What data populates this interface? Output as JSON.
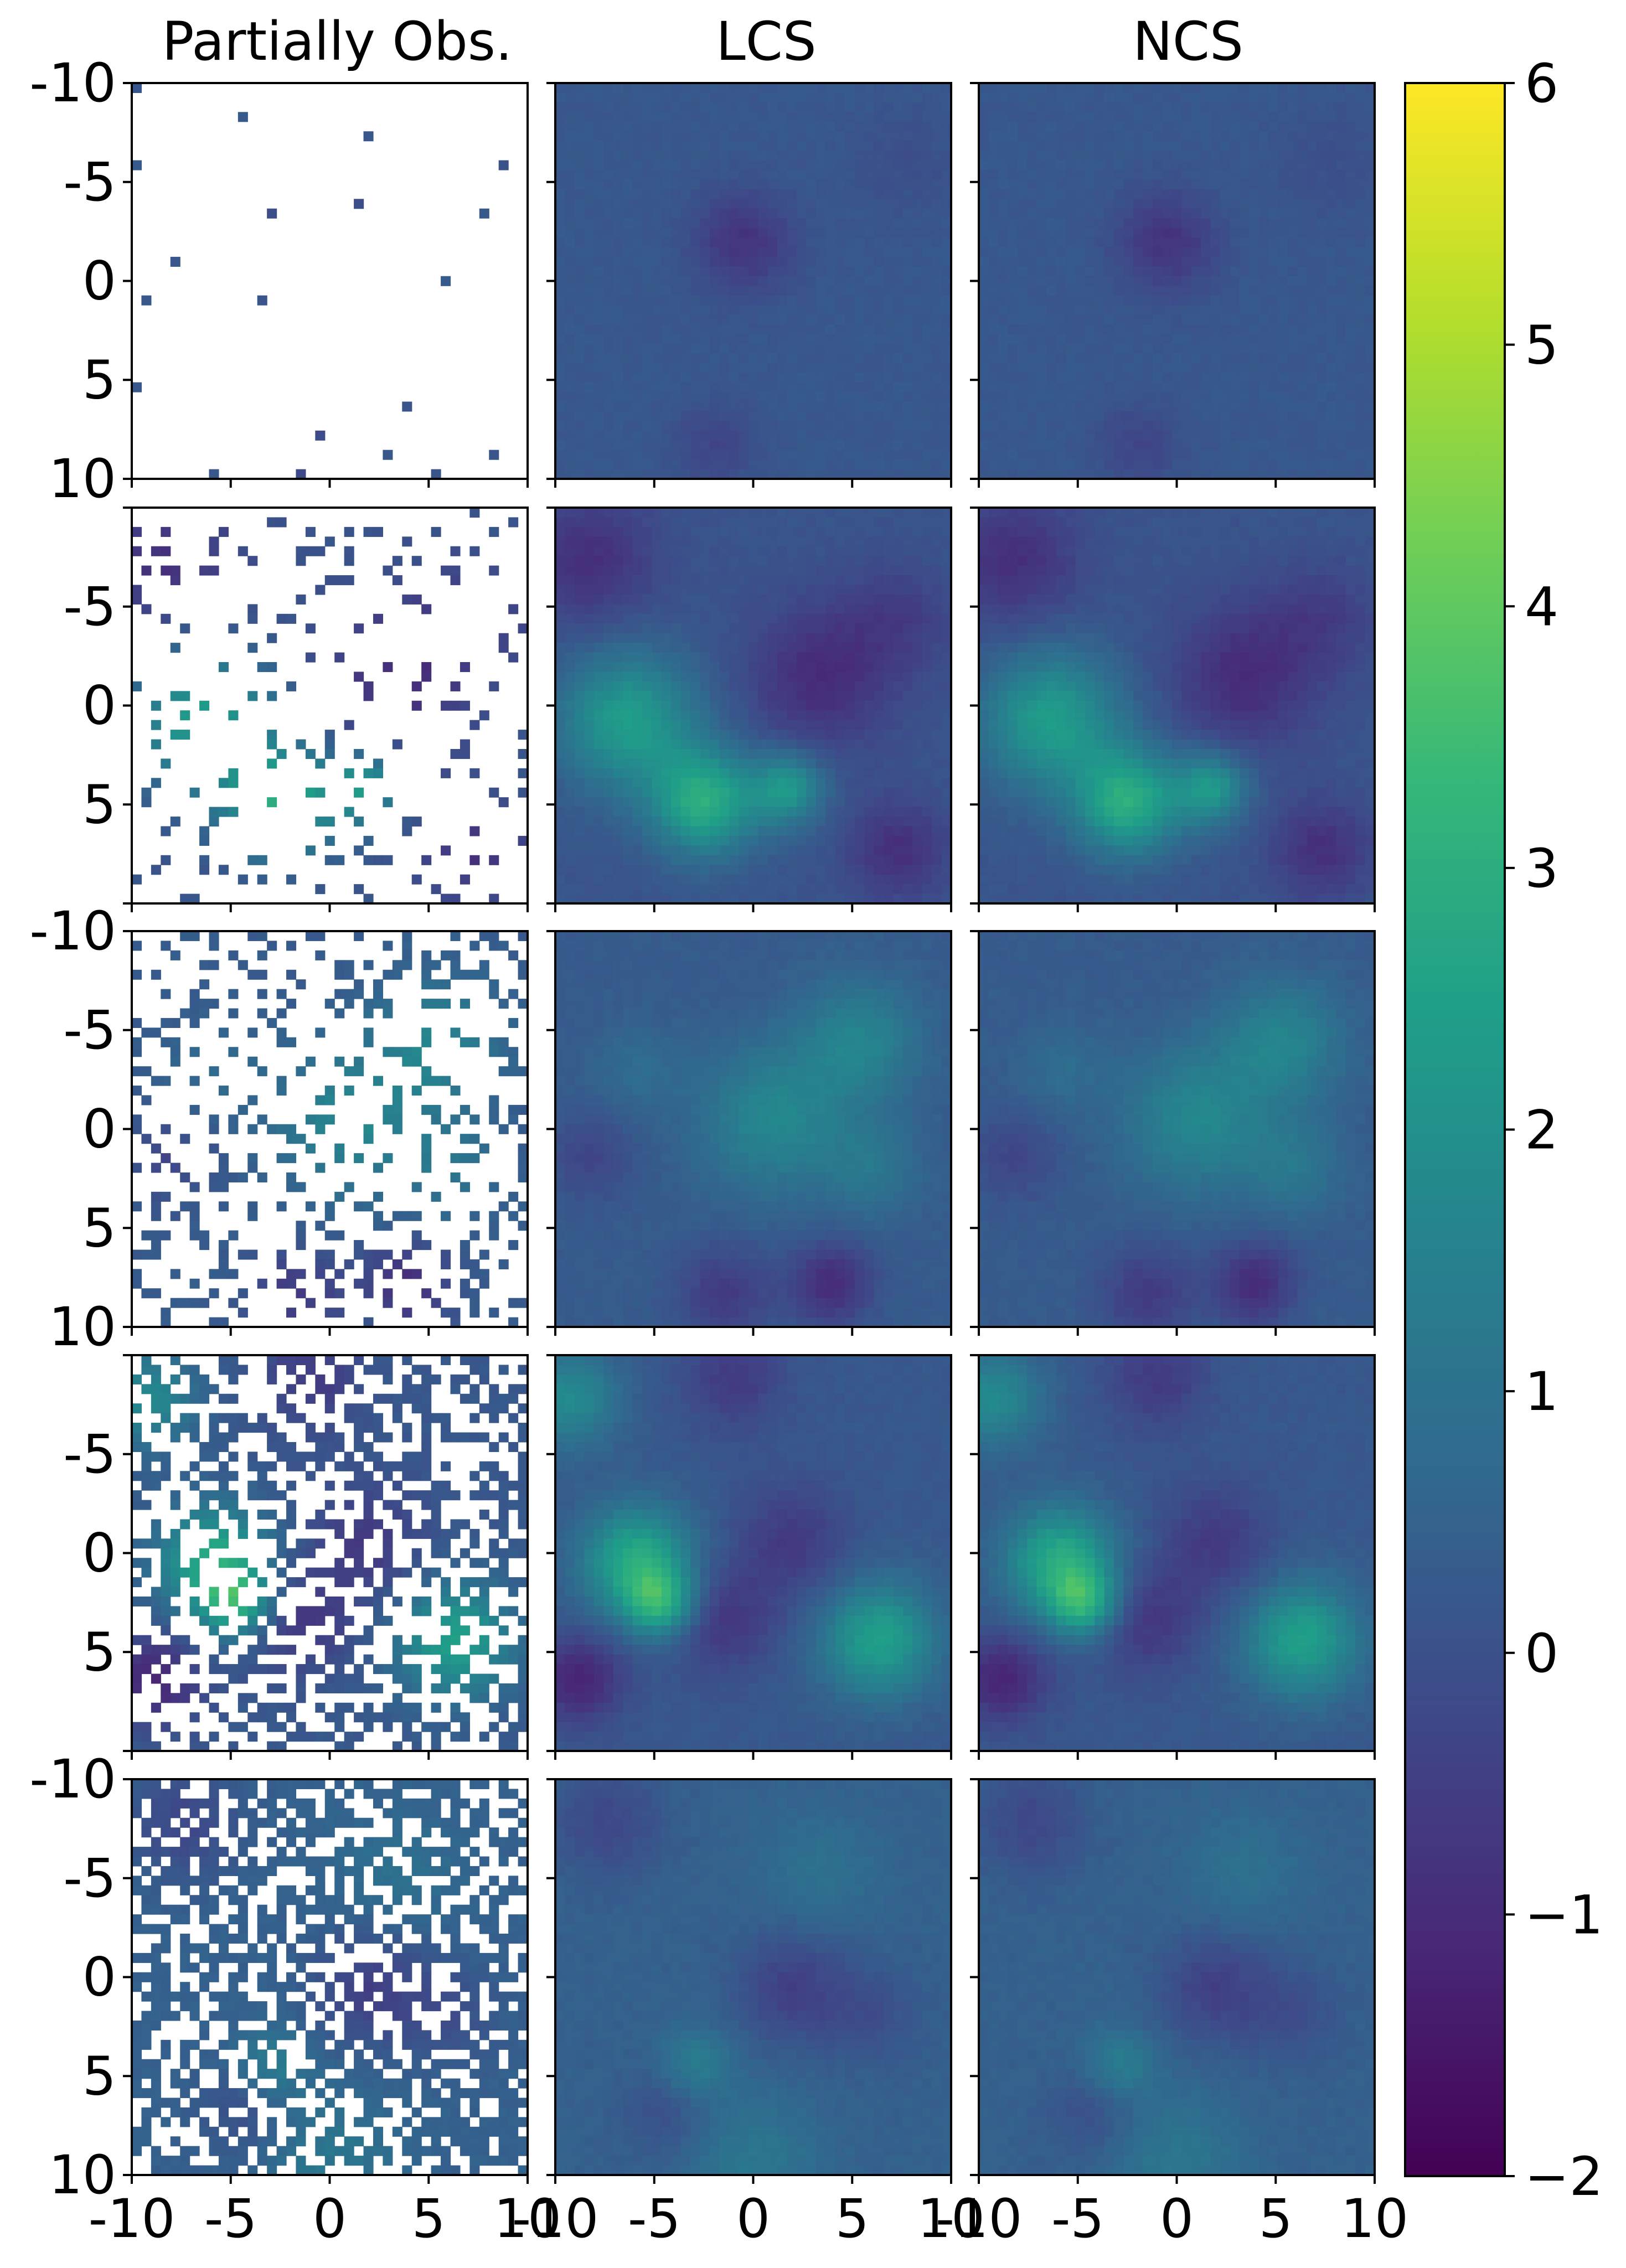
{
  "chart_data": {
    "type": "heatmap",
    "layout": "5 rows x 3 columns grid of heatmaps with shared colorbar",
    "column_titles": [
      "Partially Obs.",
      "LCS",
      "NCS"
    ],
    "grid_resolution": 41,
    "x_ticks": {
      "values": [
        -10,
        -5,
        0,
        5,
        10
      ],
      "labels": [
        "-10",
        "-5",
        "0",
        "5",
        "10"
      ]
    },
    "y_ticks": {
      "values": [
        -10,
        -5,
        0,
        5,
        10
      ],
      "labels": [
        "-10",
        "-5",
        "0",
        "5",
        "10"
      ]
    },
    "xlim": [
      -10,
      10
    ],
    "ylim": [
      -10,
      10
    ],
    "y_axis_inverted": true,
    "colormap": "viridis",
    "colormap_stops": [
      "#440154",
      "#482878",
      "#3e4989",
      "#31688e",
      "#26828e",
      "#1f9e89",
      "#35b779",
      "#6ece58",
      "#b5de2b",
      "#fde725"
    ],
    "colorbar": {
      "range": [
        -2,
        6
      ],
      "ticks": [
        -2,
        -1,
        0,
        1,
        2,
        3,
        4,
        5,
        6
      ],
      "tick_labels": [
        "−2",
        "−1",
        "0",
        "1",
        "2",
        "3",
        "4",
        "5",
        "6"
      ]
    },
    "rows": [
      {
        "observed_fraction": 0.01,
        "y_tick_labels_shown": [
          "-10",
          "-5",
          "0",
          "5",
          "10"
        ],
        "background_level": 0.2,
        "features": [
          {
            "x": -0.5,
            "y": -2,
            "amp": -1.0,
            "sigma": 1.8
          },
          {
            "x": -2,
            "y": 8.5,
            "amp": -0.5,
            "sigma": 1.6
          },
          {
            "x": 8,
            "y": -6,
            "amp": -0.25,
            "sigma": 2.0
          }
        ]
      },
      {
        "observed_fraction": 0.12,
        "y_tick_labels_shown": [
          "-5",
          "0",
          "5"
        ],
        "background_level": 0.1,
        "features": [
          {
            "x": -6.5,
            "y": 0.8,
            "amp": 2.3,
            "sigma": 2.5
          },
          {
            "x": -2.5,
            "y": 5.0,
            "amp": 2.8,
            "sigma": 1.9
          },
          {
            "x": 1.8,
            "y": 4.3,
            "amp": 2.1,
            "sigma": 1.3
          },
          {
            "x": -8.5,
            "y": -7.5,
            "amp": -1.0,
            "sigma": 2.4
          },
          {
            "x": 3.5,
            "y": -1.5,
            "amp": -1.1,
            "sigma": 2.6
          },
          {
            "x": 7.5,
            "y": 7.5,
            "amp": -1.0,
            "sigma": 1.8
          },
          {
            "x": 7.5,
            "y": -4.5,
            "amp": -0.6,
            "sigma": 2.0
          }
        ]
      },
      {
        "observed_fraction": 0.25,
        "y_tick_labels_shown": [
          "-10",
          "-5",
          "0",
          "5",
          "10"
        ],
        "background_level": 0.3,
        "features": [
          {
            "x": 5.5,
            "y": -4.5,
            "amp": 1.3,
            "sigma": 2.2
          },
          {
            "x": 1.0,
            "y": -0.5,
            "amp": 1.4,
            "sigma": 2.6
          },
          {
            "x": 6.0,
            "y": 2.0,
            "amp": 0.8,
            "sigma": 1.8
          },
          {
            "x": -6.0,
            "y": -3.0,
            "amp": 0.5,
            "sigma": 1.6
          },
          {
            "x": 4.0,
            "y": 8.0,
            "amp": -1.3,
            "sigma": 1.5
          },
          {
            "x": -1.5,
            "y": 8.5,
            "amp": -0.9,
            "sigma": 1.7
          },
          {
            "x": -8.5,
            "y": 1.5,
            "amp": -0.6,
            "sigma": 1.6
          }
        ]
      },
      {
        "observed_fraction": 0.5,
        "y_tick_labels_shown": [
          "-5",
          "0",
          "5"
        ],
        "background_level": 0.2,
        "features": [
          {
            "x": -6.0,
            "y": 0.5,
            "amp": 2.7,
            "sigma": 2.0
          },
          {
            "x": -4.8,
            "y": 2.6,
            "amp": 2.2,
            "sigma": 1.2
          },
          {
            "x": 6.5,
            "y": 4.5,
            "amp": 2.3,
            "sigma": 2.1
          },
          {
            "x": -9.5,
            "y": -8.0,
            "amp": 1.6,
            "sigma": 1.8
          },
          {
            "x": -9.0,
            "y": 6.5,
            "amp": -1.4,
            "sigma": 1.6
          },
          {
            "x": -1.5,
            "y": 3.5,
            "amp": -0.9,
            "sigma": 1.9
          },
          {
            "x": 2.0,
            "y": -0.5,
            "amp": -0.8,
            "sigma": 2.1
          },
          {
            "x": -1.0,
            "y": -9.0,
            "amp": -0.8,
            "sigma": 1.8
          }
        ]
      },
      {
        "observed_fraction": 0.6,
        "y_tick_labels_shown": [
          "-10",
          "-5",
          "0",
          "5",
          "10"
        ],
        "background_level": 0.45,
        "features": [
          {
            "x": -3.0,
            "y": 4.5,
            "amp": 0.9,
            "sigma": 1.3
          },
          {
            "x": 0.0,
            "y": 9.5,
            "amp": 0.7,
            "sigma": 2.4
          },
          {
            "x": 3.5,
            "y": -5.5,
            "amp": 0.5,
            "sigma": 2.2
          },
          {
            "x": 2.0,
            "y": 0.5,
            "amp": -0.9,
            "sigma": 2.0
          },
          {
            "x": -7.5,
            "y": -8.0,
            "amp": -0.7,
            "sigma": 2.0
          },
          {
            "x": 6.0,
            "y": 2.0,
            "amp": -0.5,
            "sigma": 1.8
          },
          {
            "x": -4.5,
            "y": 7.0,
            "amp": -0.5,
            "sigma": 1.6
          }
        ]
      }
    ]
  }
}
